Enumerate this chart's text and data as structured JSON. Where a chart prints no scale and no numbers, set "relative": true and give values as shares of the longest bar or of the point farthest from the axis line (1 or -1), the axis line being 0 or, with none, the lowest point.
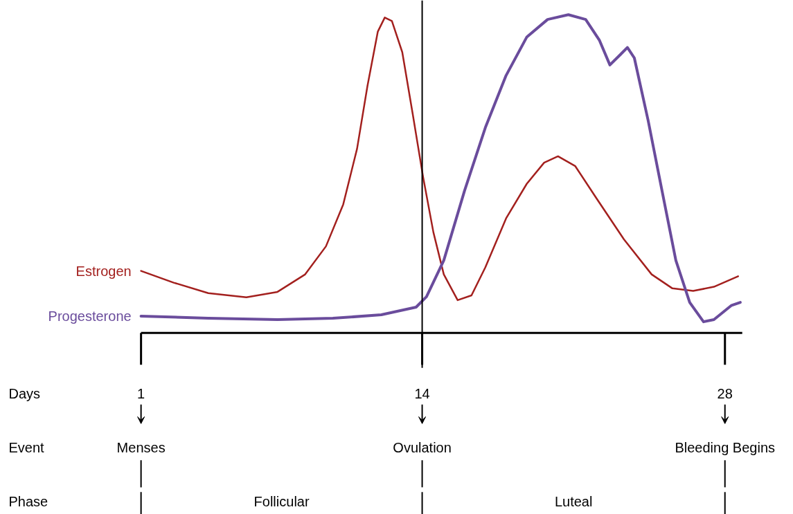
{
  "chart_data": {
    "type": "line",
    "relative": true,
    "xlim": [
      1,
      28.8
    ],
    "xticks": [
      1,
      14,
      28
    ],
    "grid": false,
    "series": [
      {
        "name": "Estrogen",
        "color": "#a3201e",
        "x": [
          1.0,
          2.51,
          4.11,
          5.87,
          7.31,
          8.59,
          9.55,
          10.35,
          10.99,
          11.47,
          11.95,
          12.27,
          12.6,
          13.08,
          13.56,
          14.04,
          14.52,
          15.0,
          15.64,
          16.28,
          16.92,
          17.88,
          18.84,
          19.64,
          20.28,
          21.08,
          22.04,
          23.33,
          24.61,
          25.57,
          26.53,
          27.49,
          28.61
        ],
        "values": [
          0.195,
          0.158,
          0.125,
          0.112,
          0.129,
          0.184,
          0.272,
          0.404,
          0.579,
          0.776,
          0.947,
          0.991,
          0.98,
          0.882,
          0.689,
          0.491,
          0.316,
          0.184,
          0.103,
          0.118,
          0.206,
          0.36,
          0.469,
          0.535,
          0.555,
          0.524,
          0.425,
          0.294,
          0.184,
          0.14,
          0.132,
          0.145,
          0.178
        ]
      },
      {
        "name": "Progesterone",
        "color": "#6a4c9c",
        "x": [
          1.0,
          4.11,
          7.31,
          9.87,
          12.11,
          13.72,
          14.2,
          15.0,
          15.96,
          16.92,
          17.88,
          18.84,
          19.8,
          20.76,
          21.56,
          22.2,
          22.68,
          23.17,
          23.49,
          23.81,
          24.45,
          25.09,
          25.73,
          26.37,
          27.01,
          27.49,
          28.29,
          28.71
        ],
        "values": [
          0.053,
          0.046,
          0.042,
          0.046,
          0.057,
          0.081,
          0.114,
          0.228,
          0.447,
          0.645,
          0.809,
          0.93,
          0.985,
          1.0,
          0.985,
          0.919,
          0.842,
          0.875,
          0.897,
          0.864,
          0.667,
          0.447,
          0.228,
          0.096,
          0.035,
          0.042,
          0.086,
          0.096
        ]
      }
    ],
    "ref_lines": [
      {
        "axis": "x",
        "value": 14,
        "color": "#000000"
      }
    ],
    "annotations": [
      "Days",
      "Event",
      "Phase",
      "Menses",
      "Ovulation",
      "Bleeding Begins",
      "Follicular",
      "Luteal"
    ]
  }
}
